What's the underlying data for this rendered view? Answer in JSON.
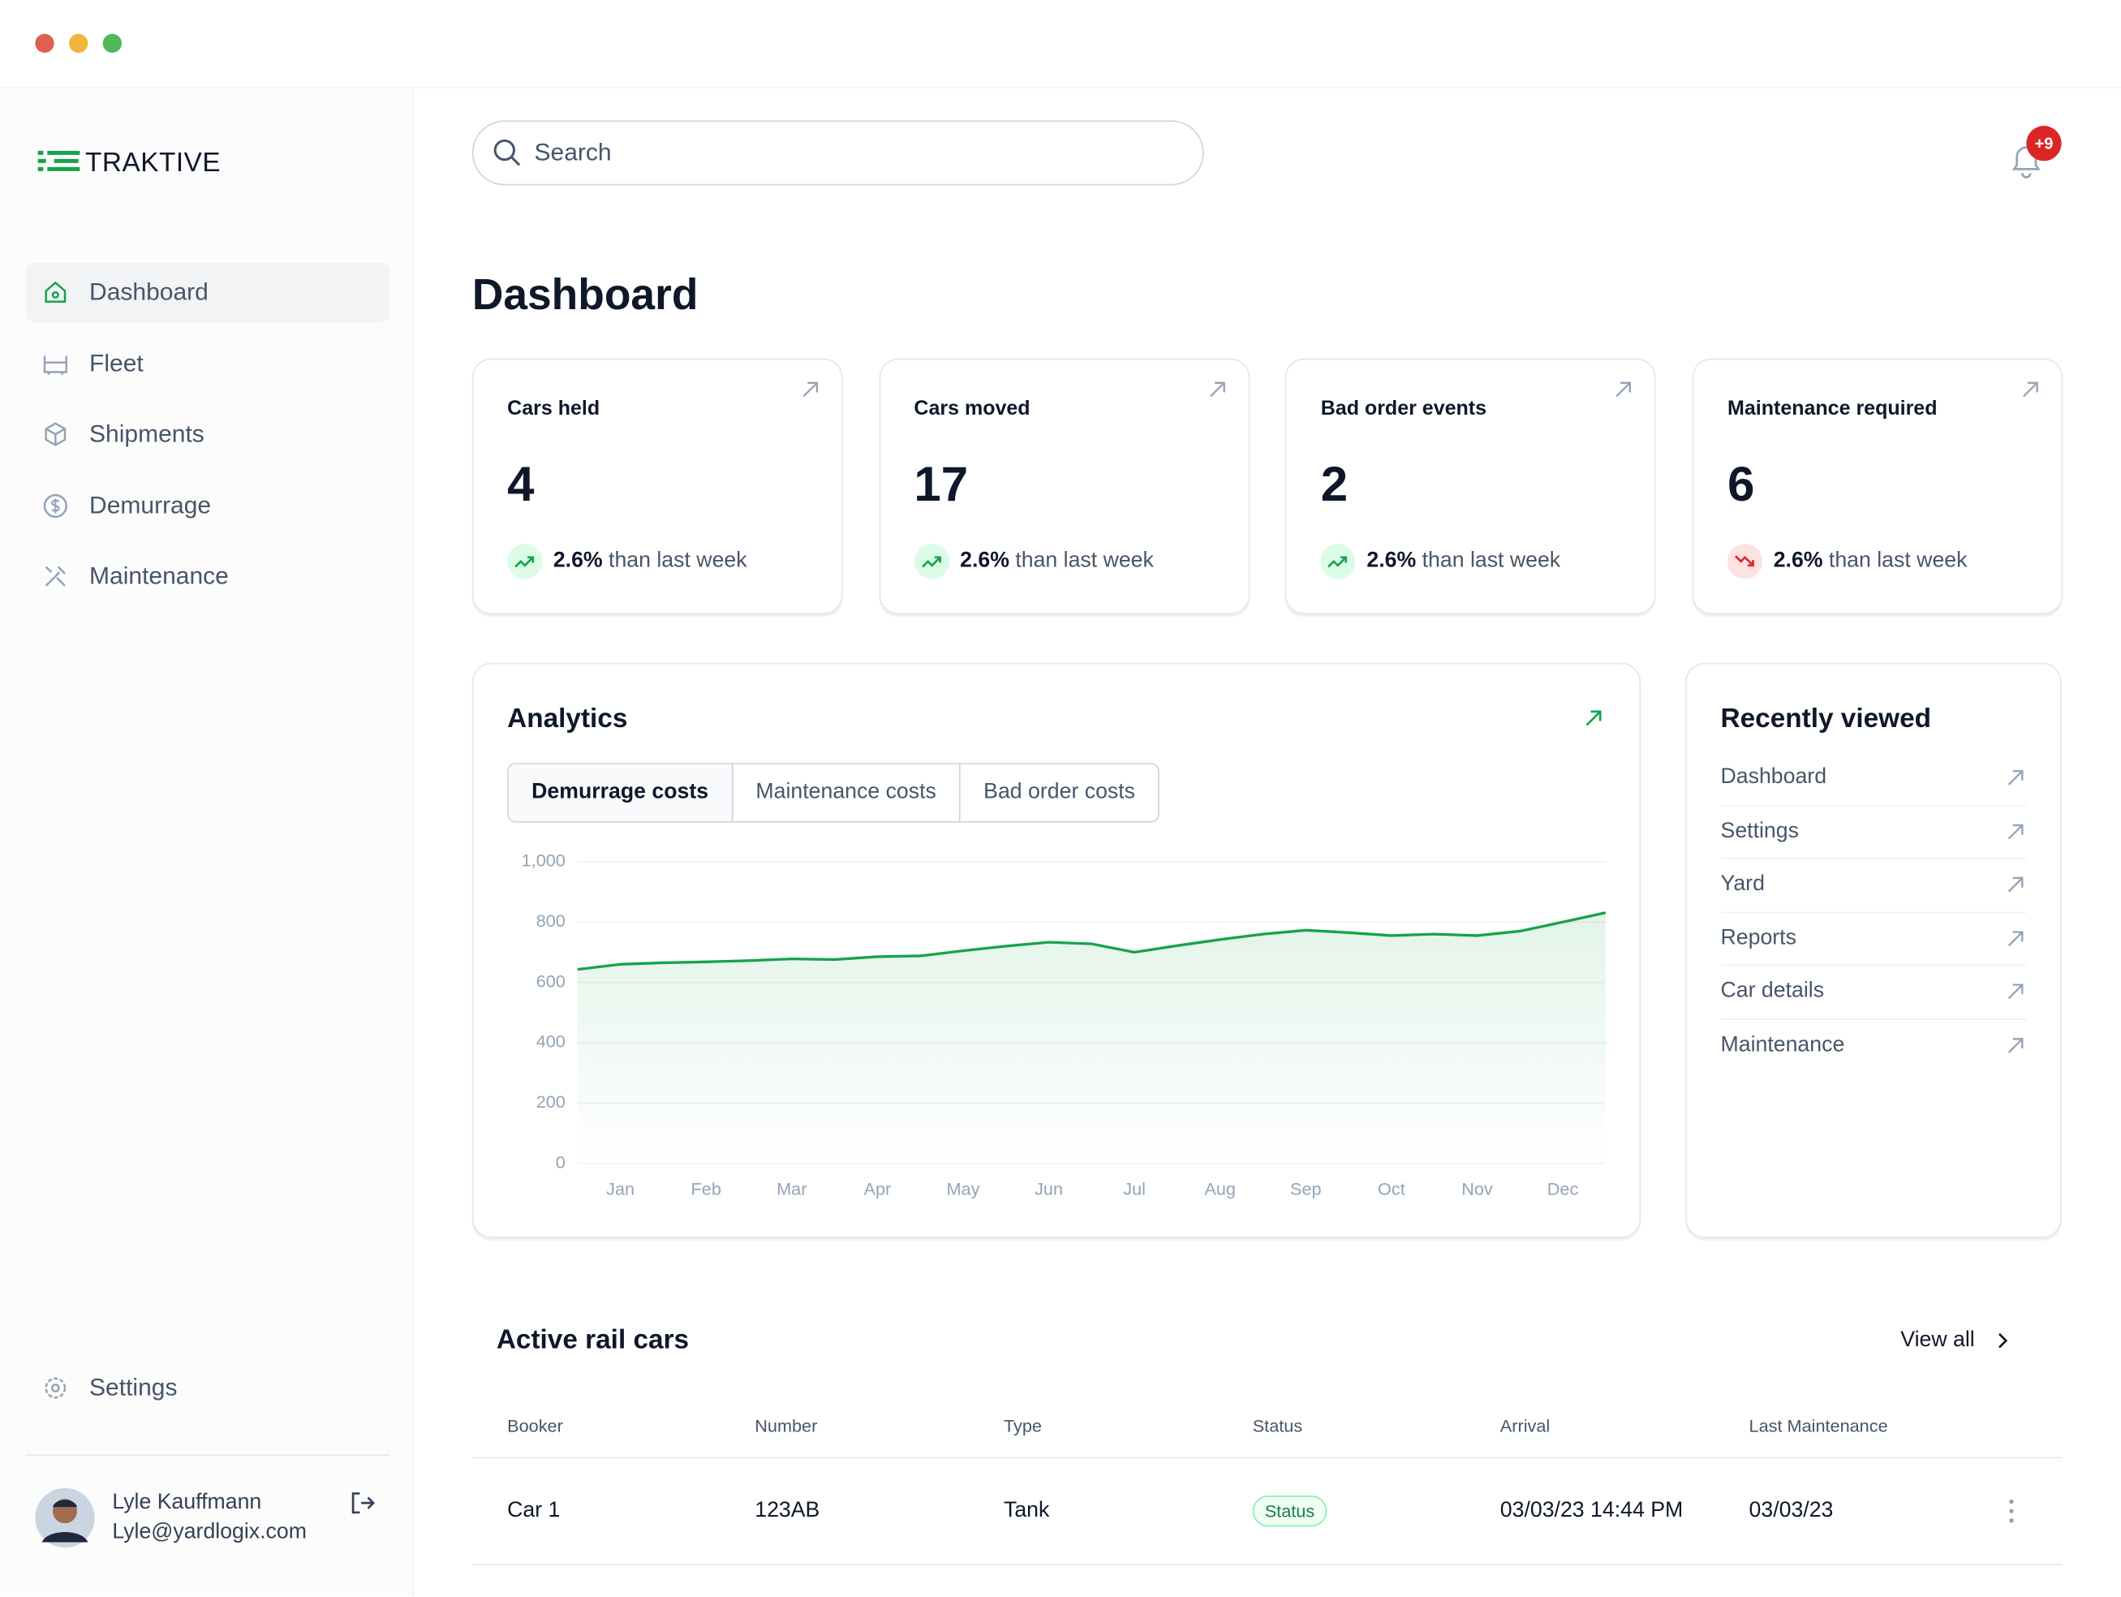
{
  "window": {
    "logo": "TRAKTIVE"
  },
  "nav": {
    "items": [
      "Dashboard",
      "Fleet",
      "Shipments",
      "Demurrage",
      "Maintenance"
    ],
    "settings": "Settings"
  },
  "user": {
    "name": "Lyle Kauffmann",
    "email": "Lyle@yardlogix.com"
  },
  "header": {
    "search_placeholder": "Search",
    "notifications": "+9",
    "title": "Dashboard"
  },
  "cards": [
    {
      "title": "Cars held",
      "value": "4",
      "change": "2.6%",
      "change_text": "than last week",
      "trend": "up"
    },
    {
      "title": "Cars moved",
      "value": "17",
      "change": "2.6%",
      "change_text": "than last week",
      "trend": "up"
    },
    {
      "title": "Bad order events",
      "value": "2",
      "change": "2.6%",
      "change_text": "than last week",
      "trend": "up"
    },
    {
      "title": "Maintenance required",
      "value": "6",
      "change": "2.6%",
      "change_text": "than last week",
      "trend": "down"
    }
  ],
  "chart_data": {
    "type": "line",
    "title": "Analytics",
    "tabs": [
      "Demurrage costs",
      "Maintenance costs",
      "Bad order costs"
    ],
    "x": [
      -0.5,
      0,
      0.5,
      1,
      1.5,
      2,
      2.5,
      3,
      3.5,
      4,
      4.5,
      5,
      5.5,
      6,
      6.5,
      7,
      7.5,
      8,
      8.5,
      9,
      9.5,
      10,
      10.5,
      11,
      11.5
    ],
    "values": [
      643,
      660,
      665,
      668,
      672,
      678,
      676,
      685,
      688,
      705,
      720,
      733,
      728,
      700,
      722,
      742,
      760,
      773,
      765,
      755,
      760,
      755,
      770,
      800,
      831
    ],
    "color": "#16a34a",
    "xlim": [
      -0.5,
      11.5
    ],
    "xticks": [
      {
        "value": 0,
        "label": "Jan"
      },
      {
        "value": 1,
        "label": "Feb"
      },
      {
        "value": 2,
        "label": "Mar"
      },
      {
        "value": 3,
        "label": "Apr"
      },
      {
        "value": 4,
        "label": "May"
      },
      {
        "value": 5,
        "label": "Jun"
      },
      {
        "value": 6,
        "label": "Jul"
      },
      {
        "value": 7,
        "label": "Aug"
      },
      {
        "value": 8,
        "label": "Sep"
      },
      {
        "value": 9,
        "label": "Oct"
      },
      {
        "value": 10,
        "label": "Nov"
      },
      {
        "value": 11,
        "label": "Dec"
      }
    ],
    "ylim": [
      0,
      1000
    ],
    "yticks": [
      0,
      200,
      400,
      600,
      800,
      {
        "value": 1000,
        "label": "1,000"
      }
    ],
    "grid": true
  },
  "recent": {
    "title": "Recently viewed",
    "items": [
      "Dashboard",
      "Settings",
      "Yard",
      "Reports",
      "Car details",
      "Maintenance"
    ]
  },
  "table": {
    "title": "Active rail cars",
    "view_all": "View all",
    "columns": [
      "Booker",
      "Number",
      "Type",
      "Status",
      "Arrival",
      "Last Maintenance"
    ],
    "rows": [
      [
        "Car 1",
        "123AB",
        "Tank",
        "Status",
        "03/03/23 14:44 PM",
        "03/03/23"
      ]
    ]
  }
}
